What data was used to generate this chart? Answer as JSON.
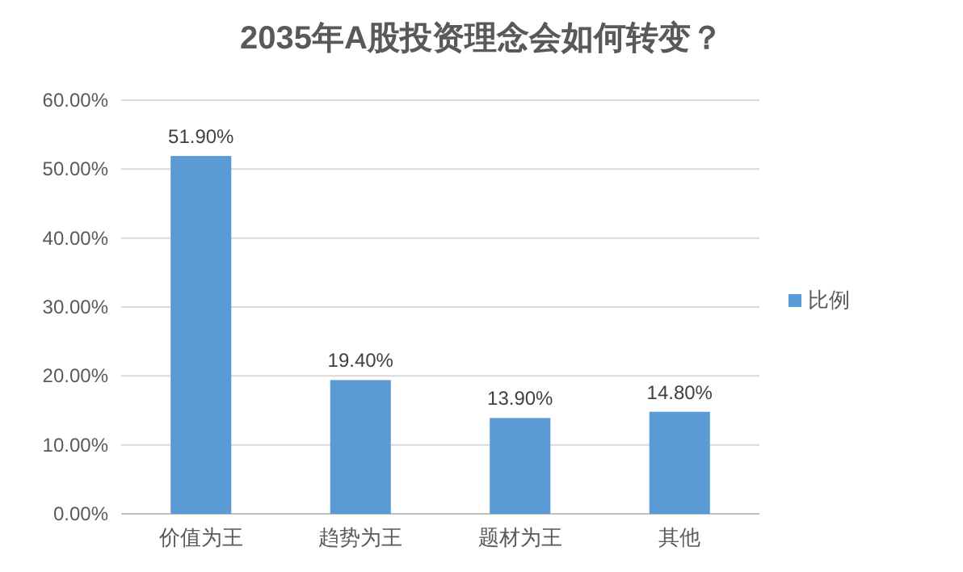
{
  "chart_data": {
    "type": "bar",
    "title": "2035年A股投资理念会如何转变？",
    "categories": [
      "价值为王",
      "趋势为王",
      "题材为王",
      "其他"
    ],
    "series": [
      {
        "name": "比例",
        "color": "#5b9bd5",
        "values": [
          51.9,
          19.4,
          13.9,
          14.8
        ],
        "value_labels": [
          "51.90%",
          "19.40%",
          "13.90%",
          "14.80%"
        ]
      }
    ],
    "ylim": [
      0,
      60
    ],
    "yticks": [
      {
        "value": 0,
        "label": "0.00%"
      },
      {
        "value": 10,
        "label": "10.00%"
      },
      {
        "value": 20,
        "label": "20.00%"
      },
      {
        "value": 30,
        "label": "30.00%"
      },
      {
        "value": 40,
        "label": "40.00%"
      },
      {
        "value": 50,
        "label": "50.00%"
      },
      {
        "value": 60,
        "label": "60.00%"
      }
    ],
    "grid": "y",
    "legend": "right"
  }
}
